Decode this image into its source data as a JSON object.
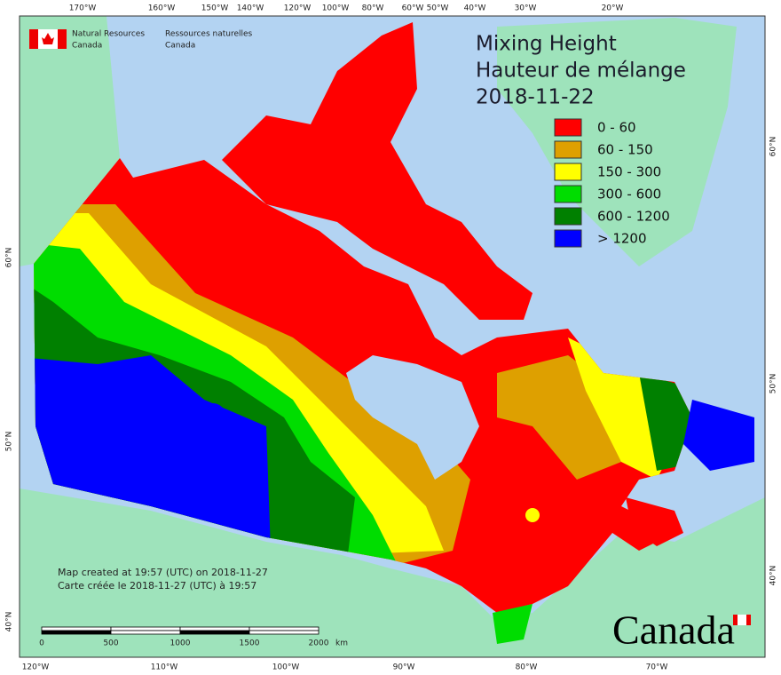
{
  "agency": {
    "en": [
      "Natural Resources",
      "Canada"
    ],
    "fr": [
      "Ressources naturelles",
      "Canada"
    ]
  },
  "title": "Mixing Height",
  "title_fr": "Hauteur de mélange",
  "date": "2018-11-22",
  "legend": [
    {
      "label": "0 - 60",
      "color": "#ff0000"
    },
    {
      "label": "60 - 150",
      "color": "#dea000"
    },
    {
      "label": "150 - 300",
      "color": "#ffff00"
    },
    {
      "label": "300 - 600",
      "color": "#00dd00"
    },
    {
      "label": "600 - 1200",
      "color": "#008000"
    },
    {
      "label": "> 1200",
      "color": "#0000ff"
    }
  ],
  "top_longitudes": [
    "170°W",
    "160°W",
    "150°W",
    "140°W",
    "120°W",
    "100°W",
    "80°W",
    "60°W",
    "50°W",
    "40°W",
    "30°W",
    "20°W"
  ],
  "bottom_longitudes": [
    "120°W",
    "110°W",
    "100°W",
    "90°W",
    "80°W",
    "70°W"
  ],
  "left_latitudes": [
    "60°N",
    "50°N",
    "40°N"
  ],
  "right_latitudes": [
    "60°N",
    "50°N",
    "40°N"
  ],
  "credits": [
    "Map created at 19:57 (UTC) on 2018-11-27",
    "Carte créée le 2018-11-27 (UTC) à 19:57"
  ],
  "scale": {
    "labels": [
      "0",
      "500",
      "1000",
      "1500",
      "2000"
    ],
    "unit": "km"
  },
  "wordmark": "Canada"
}
